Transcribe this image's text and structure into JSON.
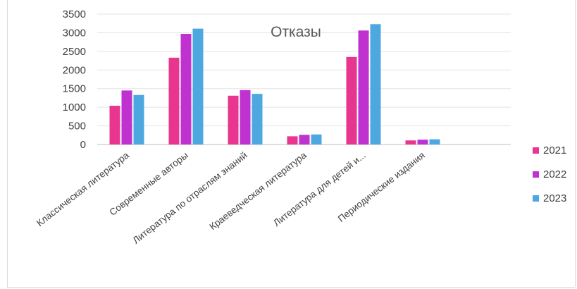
{
  "chart_data": {
    "type": "bar",
    "title": "Отказы",
    "categories": [
      "Классическая литература",
      "Современные авторы",
      "Литература по отраслям знаний",
      "Краеведческая литература",
      "Литература для детей и...",
      "Периодические издания"
    ],
    "series": [
      {
        "name": "2021",
        "color": "#e8368f",
        "values": [
          1040,
          2330,
          1310,
          220,
          2350,
          110
        ]
      },
      {
        "name": "2022",
        "color": "#c032d0",
        "values": [
          1450,
          2970,
          1460,
          260,
          3060,
          130
        ]
      },
      {
        "name": "2023",
        "color": "#4ea8e0",
        "values": [
          1330,
          3110,
          1360,
          270,
          3230,
          140
        ]
      }
    ],
    "yticks": [
      "0",
      "500",
      "1000",
      "1500",
      "2000",
      "2500",
      "3000",
      "3500"
    ],
    "ylim": [
      0,
      3500
    ],
    "grid": true,
    "legend_position": "right"
  }
}
